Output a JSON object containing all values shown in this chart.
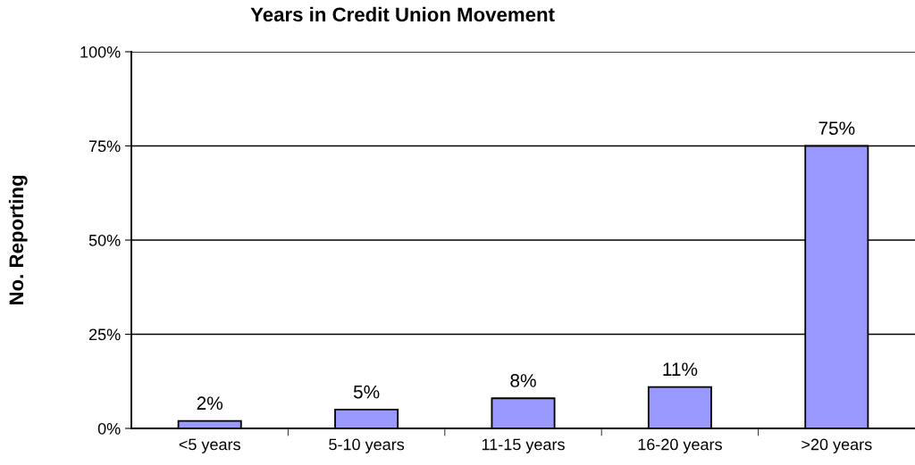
{
  "chart_data": {
    "type": "bar",
    "title": "Years in Credit Union Movement",
    "ylabel": "No. Reporting",
    "categories": [
      "<5 years",
      "5-10 years",
      "11-15 years",
      "16-20 years",
      ">20 years"
    ],
    "values": [
      2,
      5,
      8,
      11,
      75
    ],
    "value_labels": [
      "2%",
      "5%",
      "8%",
      "11%",
      "75%"
    ],
    "color": "#9999ff",
    "ylim": [
      0,
      100
    ],
    "yticks": [
      {
        "value": 0,
        "label": "0%"
      },
      {
        "value": 25,
        "label": "25%"
      },
      {
        "value": 50,
        "label": "50%"
      },
      {
        "value": 75,
        "label": "75%"
      },
      {
        "value": 100,
        "label": "100%"
      }
    ],
    "grid": "y",
    "legend": false
  }
}
